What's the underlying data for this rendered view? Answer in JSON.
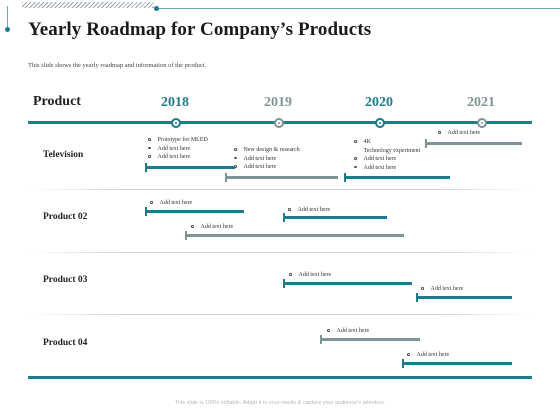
{
  "title": "Yearly Roadmap for Company’s Products",
  "subtitle": "This slide shows the yearly roadmap and information of the product.",
  "header_label": "Product",
  "years": [
    {
      "label": "2018",
      "color": "#1c7c8c"
    },
    {
      "label": "2019",
      "color": "#7f9496"
    },
    {
      "label": "2020",
      "color": "#1c7c8c"
    },
    {
      "label": "2021",
      "color": "#7f9496"
    }
  ],
  "rows": [
    {
      "name": "Television"
    },
    {
      "name": "Product 02"
    },
    {
      "name": "Product 03"
    },
    {
      "name": "Product 04"
    }
  ],
  "notes": {
    "tv_2018": [
      "Prototype for MLED",
      "Add text here",
      "Add text here"
    ],
    "tv_2019": [
      "New design & research",
      "Add text here",
      "Add text here"
    ],
    "tv_2020": [
      "4K",
      "Technology experiment",
      "Add text here",
      "Add text here"
    ],
    "tv_2021": [
      "Add text here"
    ],
    "p2_a": [
      "Add text here"
    ],
    "p2_b": [
      "Add text here"
    ],
    "p2_c": [
      "Add text here"
    ],
    "p3_a": [
      "Add text here"
    ],
    "p3_b": [
      "Add text here"
    ],
    "p4_a": [
      "Add text here"
    ],
    "p4_b": [
      "Add text here"
    ]
  },
  "footer": "This slide is 100% editable. Adapt it to your needs & capture your audience's attention."
}
